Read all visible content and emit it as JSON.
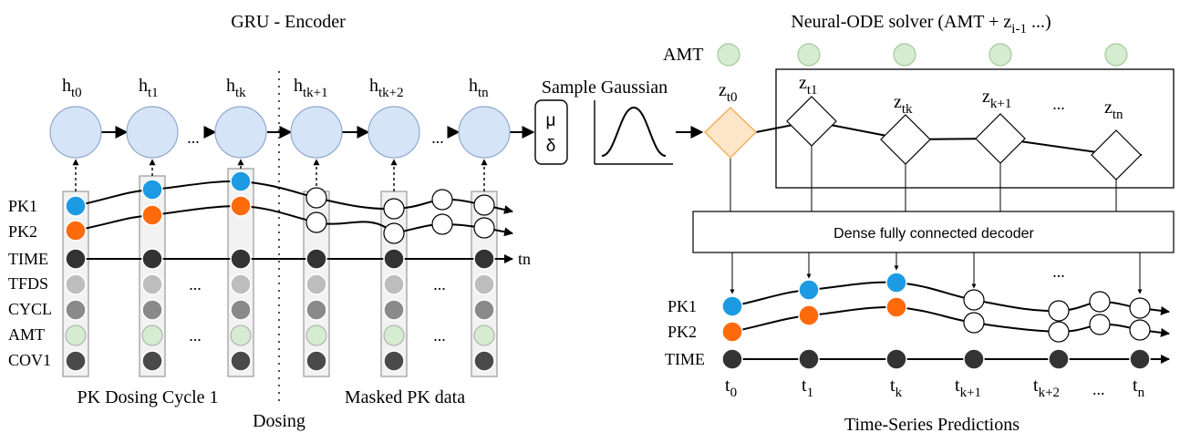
{
  "encoder": {
    "title": "GRU - Encoder",
    "hidden_states": [
      {
        "base": "h",
        "sub": "t0"
      },
      {
        "base": "h",
        "sub": "t1"
      },
      {
        "base": "h",
        "sub": "tk"
      },
      {
        "base": "h",
        "sub": "tk+1"
      },
      {
        "base": "h",
        "sub": "tk+2"
      },
      {
        "base": "h",
        "sub": "tn"
      }
    ],
    "ellipsis": "...",
    "features": [
      "PK1",
      "PK2",
      "TIME",
      "TFDS",
      "CYCL",
      "AMT",
      "COV1"
    ],
    "time_end_label": "tn",
    "caption_left": "PK Dosing Cycle 1",
    "caption_right": "Masked PK data",
    "divider_label": "Dosing"
  },
  "sampler": {
    "title": "Sample Gaussian",
    "mu": "μ",
    "delta": "δ"
  },
  "ode": {
    "title_prefix": "Neural-ODE solver  (AMT + z",
    "title_sub": "i-1",
    "title_suffix": " ...)",
    "amt_label": "AMT",
    "z0": {
      "base": "z",
      "sub": "t0"
    },
    "latents": [
      {
        "base": "z",
        "sub": "t1"
      },
      {
        "base": "z",
        "sub": "tk"
      },
      {
        "base": "z",
        "sub": "k+1"
      },
      {
        "base": "z",
        "sub": "tn"
      }
    ],
    "ellipsis": "..."
  },
  "decoder": {
    "label": "Dense fully connected decoder",
    "ellipsis": "..."
  },
  "predictions": {
    "features": [
      "PK1",
      "PK2",
      "TIME"
    ],
    "times": [
      {
        "base": "t",
        "sub": "0"
      },
      {
        "base": "t",
        "sub": "1"
      },
      {
        "base": "t",
        "sub": "k"
      },
      {
        "base": "t",
        "sub": "k+1"
      },
      {
        "base": "t",
        "sub": "k+2"
      },
      {
        "base": "",
        "sub": "..."
      },
      {
        "base": "t",
        "sub": "n"
      }
    ],
    "caption": "Time-Series Predictions"
  },
  "colors": {
    "pk1": "#1c9be3",
    "pk2": "#ff6a0d",
    "time": "#333333",
    "tfds": "#bdbdbd",
    "cycl": "#8a8a8a",
    "amt": "#d5ecd0",
    "cov1": "#4a4a4a",
    "hidden": "#d6e4f7",
    "z0_fill": "#fde6c8",
    "z0_stroke": "#f0b060"
  }
}
